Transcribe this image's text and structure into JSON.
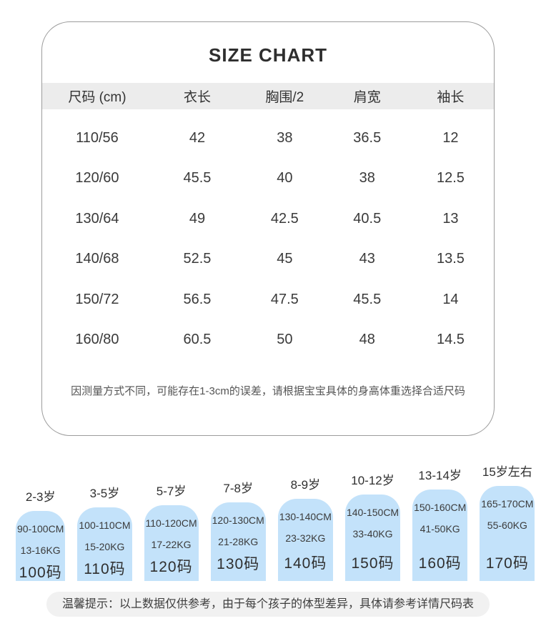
{
  "card": {
    "title": "SIZE CHART",
    "table": {
      "headers": [
        "尺码 (cm)",
        "衣长",
        "胸围/2",
        "肩宽",
        "袖长"
      ],
      "rows": [
        [
          "110/56",
          "42",
          "38",
          "36.5",
          "12"
        ],
        [
          "120/60",
          "45.5",
          "40",
          "38",
          "12.5"
        ],
        [
          "130/64",
          "49",
          "42.5",
          "40.5",
          "13"
        ],
        [
          "140/68",
          "52.5",
          "45",
          "43",
          "13.5"
        ],
        [
          "150/72",
          "56.5",
          "47.5",
          "45.5",
          "14"
        ],
        [
          "160/80",
          "60.5",
          "50",
          "48",
          "14.5"
        ]
      ]
    },
    "note": "因测量方式不同，可能存在1-3cm的误差，请根据宝宝具体的身高体重选择合适尺码"
  },
  "tags": [
    {
      "age": "2-3岁",
      "height": "90-100CM",
      "weight": "13-16KG",
      "size": "100码"
    },
    {
      "age": "3-5岁",
      "height": "100-110CM",
      "weight": "15-20KG",
      "size": "110码"
    },
    {
      "age": "5-7岁",
      "height": "110-120CM",
      "weight": "17-22KG",
      "size": "120码"
    },
    {
      "age": "7-8岁",
      "height": "120-130CM",
      "weight": "21-28KG",
      "size": "130码"
    },
    {
      "age": "8-9岁",
      "height": "130-140CM",
      "weight": "23-32KG",
      "size": "140码"
    },
    {
      "age": "10-12岁",
      "height": "140-150CM",
      "weight": "33-40KG",
      "size": "150码"
    },
    {
      "age": "13-14岁",
      "height": "150-160CM",
      "weight": "41-50KG",
      "size": "160码"
    },
    {
      "age": "15岁左右",
      "height": "165-170CM",
      "weight": "55-60KG",
      "size": "170码"
    }
  ],
  "footer": {
    "tip": "温馨提示：以上数据仅供参考，由于每个孩子的体型差异，具体请参考详情尺码表"
  },
  "colors": {
    "tag-blue": "#c3e2fa",
    "band-gray": "#ececec",
    "pill-gray": "#f1f1f1",
    "border-gray": "#9c9c9c",
    "text-dark": "#333333"
  }
}
